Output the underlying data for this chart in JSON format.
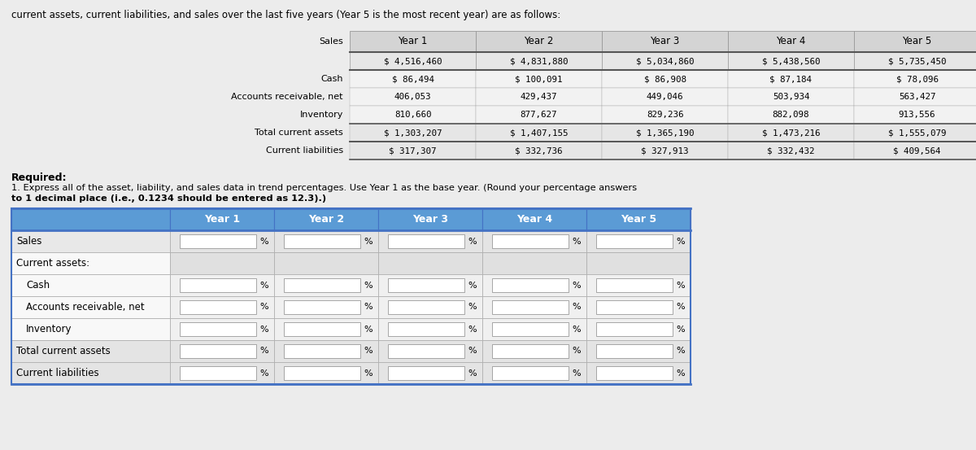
{
  "title_text": "current assets, current liabilities, and sales over the last five years (Year 5 is the most recent year) are as follows:",
  "top_table": {
    "col_headers": [
      "Year 1",
      "Year 2",
      "Year 3",
      "Year 4",
      "Year 5"
    ],
    "col_header_row2": [
      "$ 4,516,460",
      "$ 4,831,880",
      "$ 5,034,860",
      "$ 5,438,560",
      "$ 5,735,450"
    ],
    "row_labels": [
      "Sales",
      "Cash",
      "Accounts receivable, net",
      "Inventory",
      "Total current assets",
      "Current liabilities"
    ],
    "data": [
      [
        "$ 86,494",
        "$ 100,091",
        "$ 86,908",
        "$ 87,184",
        "$ 78,096"
      ],
      [
        "406,053",
        "429,437",
        "449,046",
        "503,934",
        "563,427"
      ],
      [
        "810,660",
        "877,627",
        "829,236",
        "882,098",
        "913,556"
      ],
      [
        "$ 1,303,207",
        "$ 1,407,155",
        "$ 1,365,190",
        "$ 1,473,216",
        "$ 1,555,079"
      ],
      [
        "$ 317,307",
        "$ 332,736",
        "$ 327,913",
        "$ 332,432",
        "$ 409,564"
      ]
    ]
  },
  "required_text": "Required:",
  "instruction_line1": "1. Express all of the asset, liability, and sales data in trend percentages. Use Year 1 as the base year. (Round your percentage answers",
  "instruction_line2": "to 1 decimal place (i.e., 0.1234 should be entered as 12.3).)",
  "bottom_table": {
    "col_headers": [
      "Year 1",
      "Year 2",
      "Year 3",
      "Year 4",
      "Year 5"
    ],
    "row_labels": [
      "Sales",
      "Current assets:",
      "Cash",
      "Accounts receivable, net",
      "Inventory",
      "Total current assets",
      "Current liabilities"
    ],
    "has_percent": [
      true,
      false,
      true,
      true,
      true,
      true,
      true
    ],
    "is_indented": [
      false,
      false,
      true,
      true,
      true,
      false,
      false
    ],
    "header_bg": "#5b9bd5",
    "header_text_color": "#ffffff",
    "border_color": "#4472c4"
  },
  "bg_color": "#ececec"
}
